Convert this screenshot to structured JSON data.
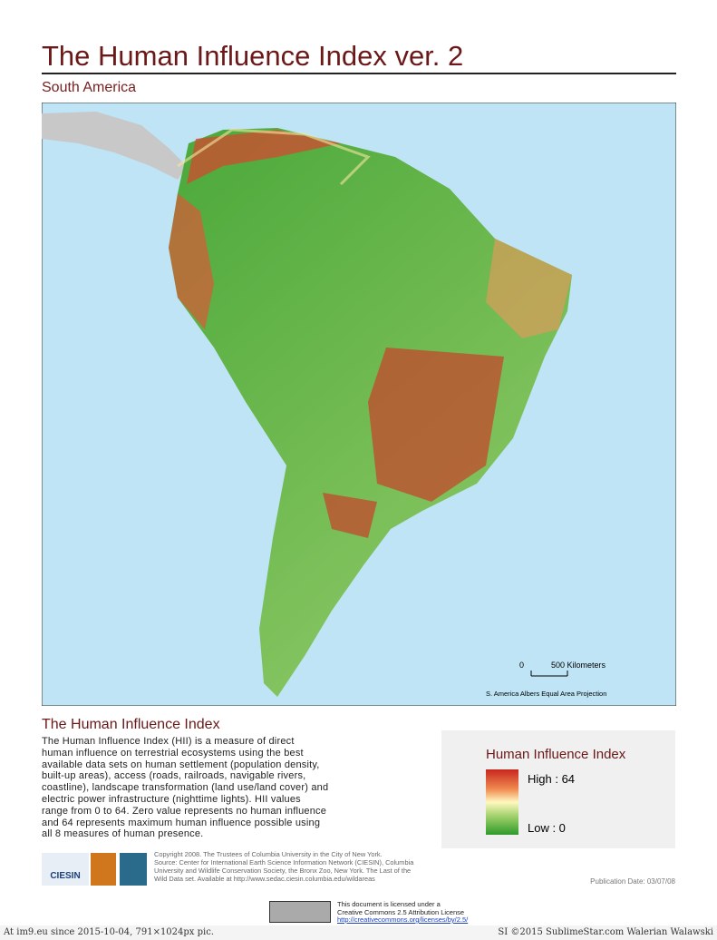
{
  "header": {
    "title": "The Human Influence Index ver. 2",
    "subtitle": "South America"
  },
  "map": {
    "scale_zero": "0",
    "scale_label": "500 Kilometers",
    "projection": "S. America Albers Equal Area Projection"
  },
  "description": {
    "heading": "The Human Influence Index",
    "lines": [
      "The Human Influence Index (HII) is a measure of direct",
      "human influence on terrestrial ecosystems using the best",
      "available data sets on human settlement (population density,",
      "built-up areas), access (roads, railroads, navigable rivers,",
      "coastline), landscape transformation (land use/land cover) and",
      "electric power infrastructure (nighttime lights). HII values",
      "range from 0 to 64. Zero value represents no human influence",
      "and 64 represents maximum human influence possible using",
      "all 8 measures of human presence."
    ]
  },
  "logos": [
    "CIESIN"
  ],
  "credits": [
    "Copyright 2008. The Trustees of Columbia University in the City of New York.",
    "Source: Center for International Earth Science Information Network (CIESIN), Columbia",
    "University  and Wildlife Conservation Society, the Bronx Zoo, New York. The Last of the",
    "Wild Data set. Available at http://www.sedac.ciesin.columbia.edu/wildareas"
  ],
  "legend": {
    "title": "Human Influence Index",
    "high": "High : 64",
    "low": "Low : 0"
  },
  "publication_date": "Publication Date: 03/07/08",
  "license": {
    "line1": "This document is licensed under a",
    "line2": "Creative Commons 2.5 Attribution License",
    "url": "http://creativecommons.org/licenses/by/2.5/"
  },
  "footer": {
    "left": "At im9.eu since 2015-10-04, 791×1024px pic.",
    "right": "SI ©2015 SublimeStar.com Walerian Walawski"
  }
}
